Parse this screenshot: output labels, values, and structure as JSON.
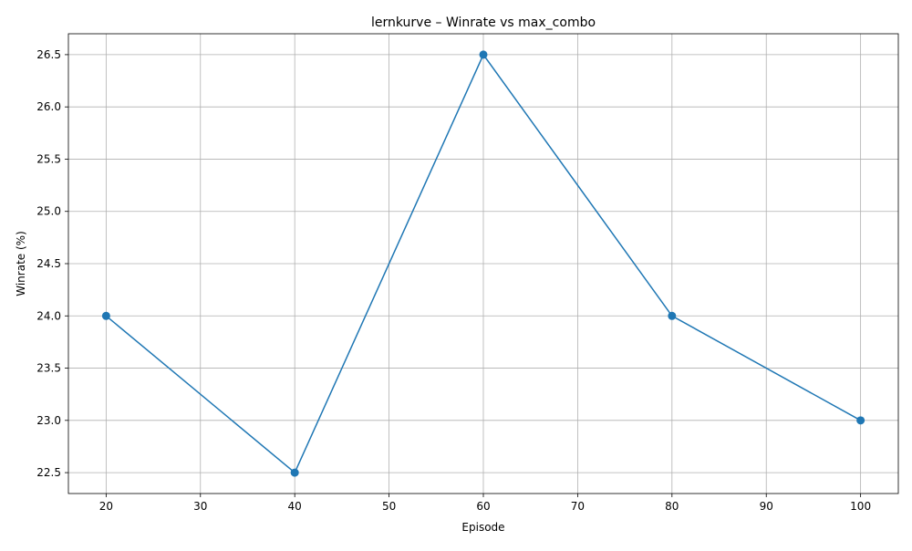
{
  "chart_data": {
    "type": "line",
    "title": "lernkurve – Winrate vs max_combo",
    "xlabel": "Episode",
    "ylabel": "Winrate (%)",
    "x": [
      20,
      40,
      60,
      80,
      100
    ],
    "series": [
      {
        "values": [
          24.0,
          22.5,
          26.5,
          24.0,
          23.0
        ]
      }
    ],
    "xlim": [
      16,
      104
    ],
    "ylim": [
      22.3,
      26.7
    ],
    "x_ticks": [
      20,
      30,
      40,
      50,
      60,
      70,
      80,
      90,
      100
    ],
    "y_ticks": [
      "22.5",
      "23.0",
      "23.5",
      "24.0",
      "24.5",
      "25.0",
      "25.5",
      "26.0",
      "26.5"
    ],
    "grid": true,
    "markers": true,
    "line_color": "#1f77b4",
    "grid_color": "#b0b0b0"
  }
}
